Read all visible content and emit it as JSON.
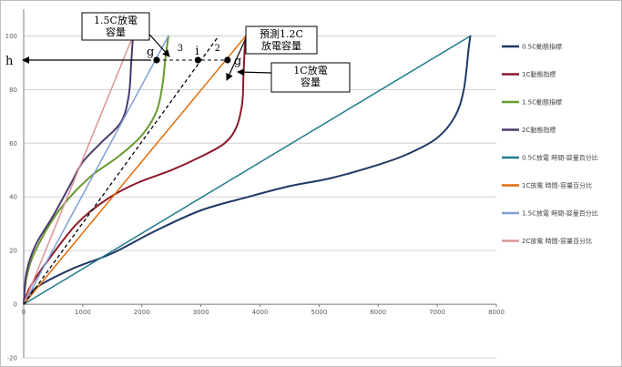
{
  "chart_data": {
    "type": "line",
    "xlim": [
      0,
      8000
    ],
    "ylim": [
      -20,
      110
    ],
    "x_ticks": [
      0,
      1000,
      2000,
      3000,
      4000,
      5000,
      6000,
      7000,
      8000
    ],
    "y_ticks": [
      -20,
      0,
      20,
      40,
      60,
      80,
      100
    ],
    "grid": "horizontal",
    "legend_position": "right",
    "series": [
      {
        "name": "0.5C動態指標",
        "color": "#1f3864",
        "width": 2,
        "dash": "",
        "curve": true,
        "points": [
          [
            0,
            0
          ],
          [
            200,
            6
          ],
          [
            800,
            13
          ],
          [
            1500,
            19
          ],
          [
            2200,
            27
          ],
          [
            3000,
            35
          ],
          [
            3800,
            40
          ],
          [
            4500,
            44
          ],
          [
            5200,
            47
          ],
          [
            6000,
            52
          ],
          [
            6500,
            56
          ],
          [
            7000,
            62
          ],
          [
            7300,
            70
          ],
          [
            7450,
            80
          ],
          [
            7530,
            95
          ],
          [
            7560,
            100
          ]
        ]
      },
      {
        "name": "1C動態指標",
        "color": "#8b1a2a",
        "width": 2,
        "dash": "",
        "curve": true,
        "points": [
          [
            0,
            0
          ],
          [
            100,
            6
          ],
          [
            400,
            16
          ],
          [
            900,
            30
          ],
          [
            1400,
            39
          ],
          [
            1900,
            45
          ],
          [
            2500,
            50
          ],
          [
            3000,
            55
          ],
          [
            3400,
            60
          ],
          [
            3600,
            66
          ],
          [
            3700,
            75
          ],
          [
            3720,
            85
          ],
          [
            3740,
            95
          ],
          [
            3760,
            100
          ]
        ]
      },
      {
        "name": "1.5C動態指標",
        "color": "#6a9a2e",
        "width": 2,
        "dash": "",
        "curve": true,
        "points": [
          [
            0,
            0
          ],
          [
            50,
            10
          ],
          [
            200,
            20
          ],
          [
            600,
            35
          ],
          [
            1100,
            47
          ],
          [
            1600,
            55
          ],
          [
            2000,
            63
          ],
          [
            2250,
            72
          ],
          [
            2350,
            82
          ],
          [
            2400,
            92
          ],
          [
            2450,
            100
          ]
        ]
      },
      {
        "name": "2C動態指標",
        "color": "#4b3b6e",
        "width": 2,
        "dash": "",
        "curve": true,
        "points": [
          [
            0,
            0
          ],
          [
            50,
            12
          ],
          [
            200,
            22
          ],
          [
            500,
            33
          ],
          [
            800,
            45
          ],
          [
            1000,
            53
          ],
          [
            1300,
            60
          ],
          [
            1650,
            68
          ],
          [
            1780,
            78
          ],
          [
            1820,
            90
          ],
          [
            1850,
            100
          ]
        ]
      },
      {
        "name": "0.5C放電 時間-容量百分比",
        "color": "#1f7a8c",
        "width": 1.5,
        "dash": "",
        "curve": false,
        "points": [
          [
            0,
            0
          ],
          [
            7560,
            100
          ]
        ]
      },
      {
        "name": "1C放電 時間-容量百分比",
        "color": "#e46c0a",
        "width": 1.5,
        "dash": "",
        "curve": false,
        "points": [
          [
            0,
            0
          ],
          [
            3760,
            100
          ]
        ]
      },
      {
        "name": "1.5C放電 時間-容量百分比",
        "color": "#7f9fd5",
        "width": 1.5,
        "dash": "",
        "curve": false,
        "points": [
          [
            0,
            0
          ],
          [
            2450,
            100
          ]
        ]
      },
      {
        "name": "2C放電 時間-容量百分比",
        "color": "#d99694",
        "width": 1.5,
        "dash": "",
        "curve": false,
        "points": [
          [
            0,
            0
          ],
          [
            1850,
            100
          ]
        ]
      }
    ],
    "annotations": {
      "predicted_line": {
        "points": [
          [
            0,
            0
          ],
          [
            3300,
            100
          ]
        ],
        "color": "#000000",
        "dash": "4,3"
      },
      "h_level": 91,
      "points": [
        {
          "label": "g",
          "x": 2250
        },
        {
          "label": "i",
          "x": 2950
        },
        {
          "label": "g",
          "x": 3450
        }
      ],
      "segment_labels": [
        {
          "text": "3",
          "x": 2650
        },
        {
          "text": "2",
          "x": 3280
        }
      ],
      "h_label": "h",
      "callouts": [
        {
          "lines": [
            "1.5C放電",
            "容量"
          ]
        },
        {
          "lines": [
            "預測1.2C",
            "放電容量"
          ]
        },
        {
          "lines": [
            "1C放電",
            "容量"
          ]
        }
      ]
    }
  }
}
